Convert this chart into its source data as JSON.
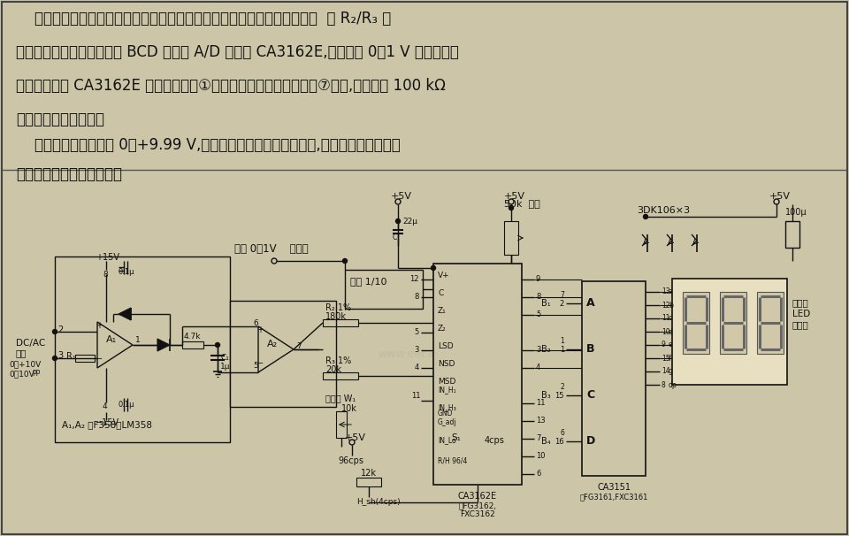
{
  "bg_color": "#ccc5a8",
  "border_color": "#222222",
  "text_color": "#111111",
  "fig_width": 9.6,
  "fig_height": 6.06,
  "dpi": 100,
  "p1": [
    "    本电压表电路的输入级用运算放大器和二极管反馈构成线性峰值整流电路  经 R₂/R₃ 分",
    "压隔离后送入双积分式多路 BCD 输出的 A/D 变换器 CA3162E,也可以将 0～1 V 的直流被测",
    "电压直接加入 CA3162E 的差动输入端①和⑯之间。如果⑯不是连接⑦使用,则必须用 100 kΩ",
    "以下的电阻连接它们。"
  ],
  "p2": [
    "    本电压表输入范围是 0～+9.99 V,对交流输入电压仅能显示峰值,需要显示交流有效值",
    "时应加适当衰减变换电路。"
  ]
}
